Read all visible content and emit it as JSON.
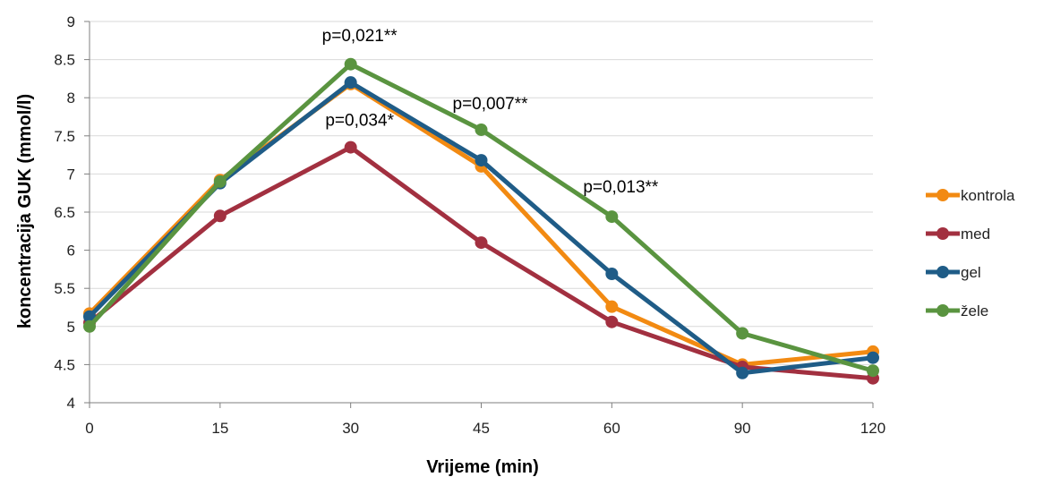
{
  "chart_data": {
    "type": "line",
    "xlabel": "Vrijeme (min)",
    "ylabel": "koncentracija GUK (mmol/l)",
    "categories": [
      "0",
      "15",
      "30",
      "45",
      "60",
      "90",
      "120"
    ],
    "ylim": [
      4,
      9
    ],
    "yticks": [
      "4",
      "4.5",
      "5",
      "5.5",
      "6",
      "6.5",
      "7",
      "7.5",
      "8",
      "8.5",
      "9"
    ],
    "grid": "horizontal",
    "legend": "right",
    "series": [
      {
        "name": "kontrola",
        "color": "#F28A12",
        "values": [
          5.17,
          6.92,
          8.18,
          7.1,
          5.26,
          4.5,
          4.67
        ]
      },
      {
        "name": "med",
        "color": "#A23040",
        "values": [
          5.05,
          6.45,
          7.35,
          6.1,
          5.06,
          4.47,
          4.32
        ]
      },
      {
        "name": "gel",
        "color": "#1F5C87",
        "values": [
          5.13,
          6.88,
          8.2,
          7.18,
          5.69,
          4.39,
          4.59
        ]
      },
      {
        "name": "žele",
        "color": "#5A9440",
        "values": [
          5.0,
          6.9,
          8.44,
          7.58,
          6.44,
          4.91,
          4.42
        ]
      }
    ],
    "annotations": [
      {
        "text": "p=0,021**",
        "x": "30",
        "y": 8.74
      },
      {
        "text": "p=0,034*",
        "x": "30",
        "y": 7.63
      },
      {
        "text": "p=0,007**",
        "x": "45",
        "y": 7.85
      },
      {
        "text": "p=0,013**",
        "x": "60",
        "y": 6.76
      }
    ]
  }
}
